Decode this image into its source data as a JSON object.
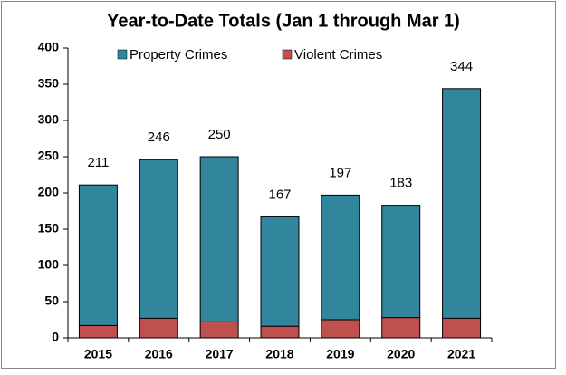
{
  "chart_data": {
    "type": "stacked_bar",
    "title": "Year-to-Date Totals (Jan 1 through Mar 1)",
    "categories": [
      "2015",
      "2016",
      "2017",
      "2018",
      "2019",
      "2020",
      "2021"
    ],
    "series": [
      {
        "name": "Violent Crimes",
        "color": "#c0504d",
        "values": [
          17,
          27,
          22,
          16,
          25,
          28,
          27
        ]
      },
      {
        "name": "Property Crimes",
        "color": "#31859c",
        "values": [
          194,
          219,
          228,
          151,
          172,
          155,
          317
        ]
      }
    ],
    "totals": [
      211,
      246,
      250,
      167,
      197,
      183,
      344
    ],
    "ylim": [
      0,
      400
    ],
    "yticks": [
      0,
      50,
      100,
      150,
      200,
      250,
      300,
      350,
      400
    ],
    "legend": "top",
    "grid": false
  }
}
